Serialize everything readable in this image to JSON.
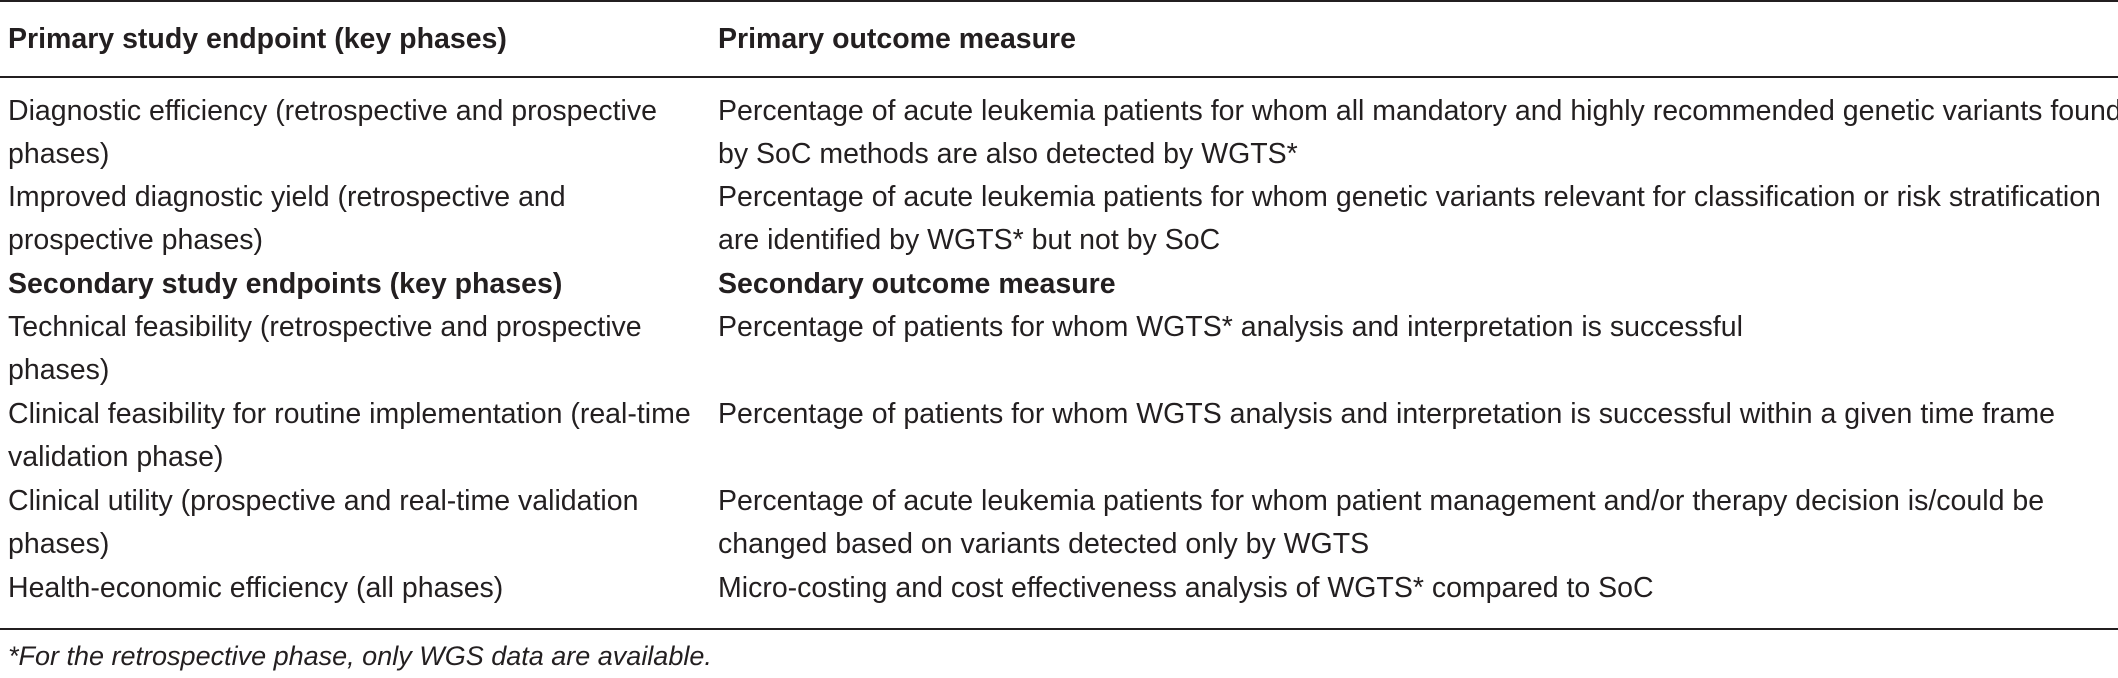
{
  "table": {
    "header": {
      "col1": "Primary study endpoint (key phases)",
      "col2": "Primary outcome measure"
    },
    "rows": [
      {
        "c1": [
          "Diagnostic efficiency (retrospective and prospective",
          "phases)"
        ],
        "c2": [
          "Percentage of acute leukemia patients for whom all mandatory and highly recommended genetic variants found",
          "by SoC methods are also detected by WGTS*"
        ]
      },
      {
        "c1": [
          "Improved diagnostic yield (retrospective and",
          "prospective phases)"
        ],
        "c2": [
          "Percentage of acute leukemia patients for whom genetic variants relevant for classification or risk stratification",
          "are identified by WGTS* but not by SoC"
        ]
      }
    ],
    "subheader": {
      "col1": "Secondary study endpoints (key phases)",
      "col2": "Secondary outcome measure"
    },
    "rows2": [
      {
        "c1": [
          "Technical feasibility (retrospective and prospective",
          "phases)"
        ],
        "c2": [
          "Percentage of patients for whom WGTS* analysis and interpretation is successful"
        ]
      },
      {
        "c1": [
          "Clinical feasibility for routine implementation (real-time",
          "validation phase)"
        ],
        "c2": [
          "Percentage of patients for whom WGTS analysis and interpretation is successful within a given time frame"
        ]
      },
      {
        "c1": [
          "Clinical utility (prospective and real-time validation",
          "phases)"
        ],
        "c2": [
          "Percentage of acute leukemia patients for whom patient management and/or therapy decision is/could be",
          "changed based on variants detected only by WGTS"
        ]
      },
      {
        "c1": [
          "Health-economic efficiency (all phases)"
        ],
        "c2": [
          "Micro-costing and cost effectiveness analysis of WGTS* compared to SoC"
        ]
      }
    ],
    "footnote": "*For the retrospective phase, only WGS data are available."
  }
}
